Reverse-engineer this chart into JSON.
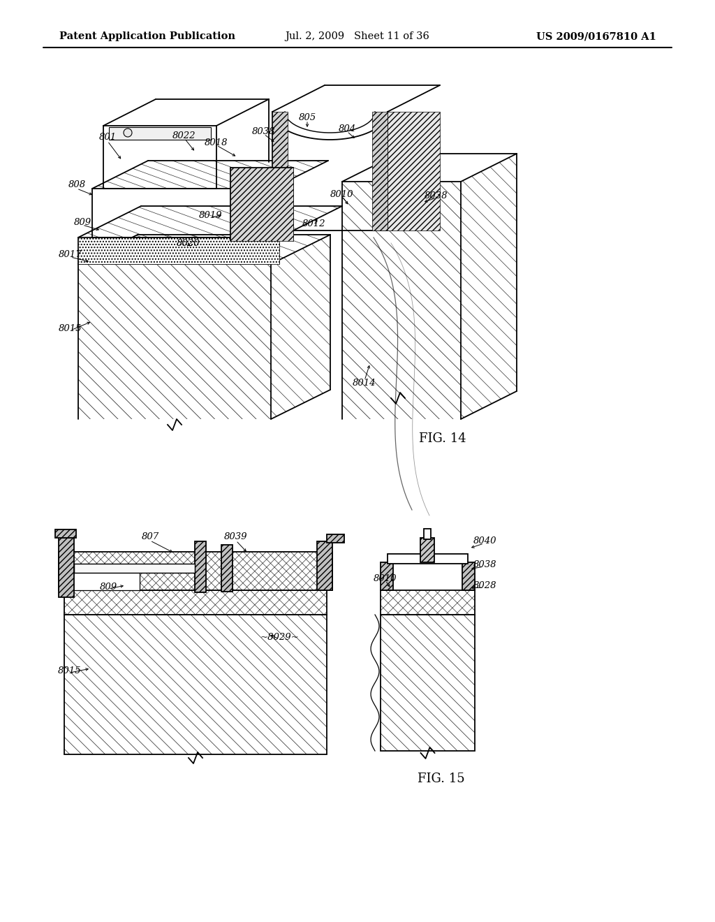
{
  "background_color": "#ffffff",
  "header_left": "Patent Application Publication",
  "header_center": "Jul. 2, 2009   Sheet 11 of 36",
  "header_right": "US 2009/0167810 A1",
  "header_fontsize": 10.5,
  "fig14_label": "FIG. 14",
  "fig15_label": "FIG. 15",
  "line_color": "#000000",
  "line_width": 1.3,
  "thin_lw": 0.7,
  "label_fontsize": 9.5,
  "fig_label_fontsize": 13
}
